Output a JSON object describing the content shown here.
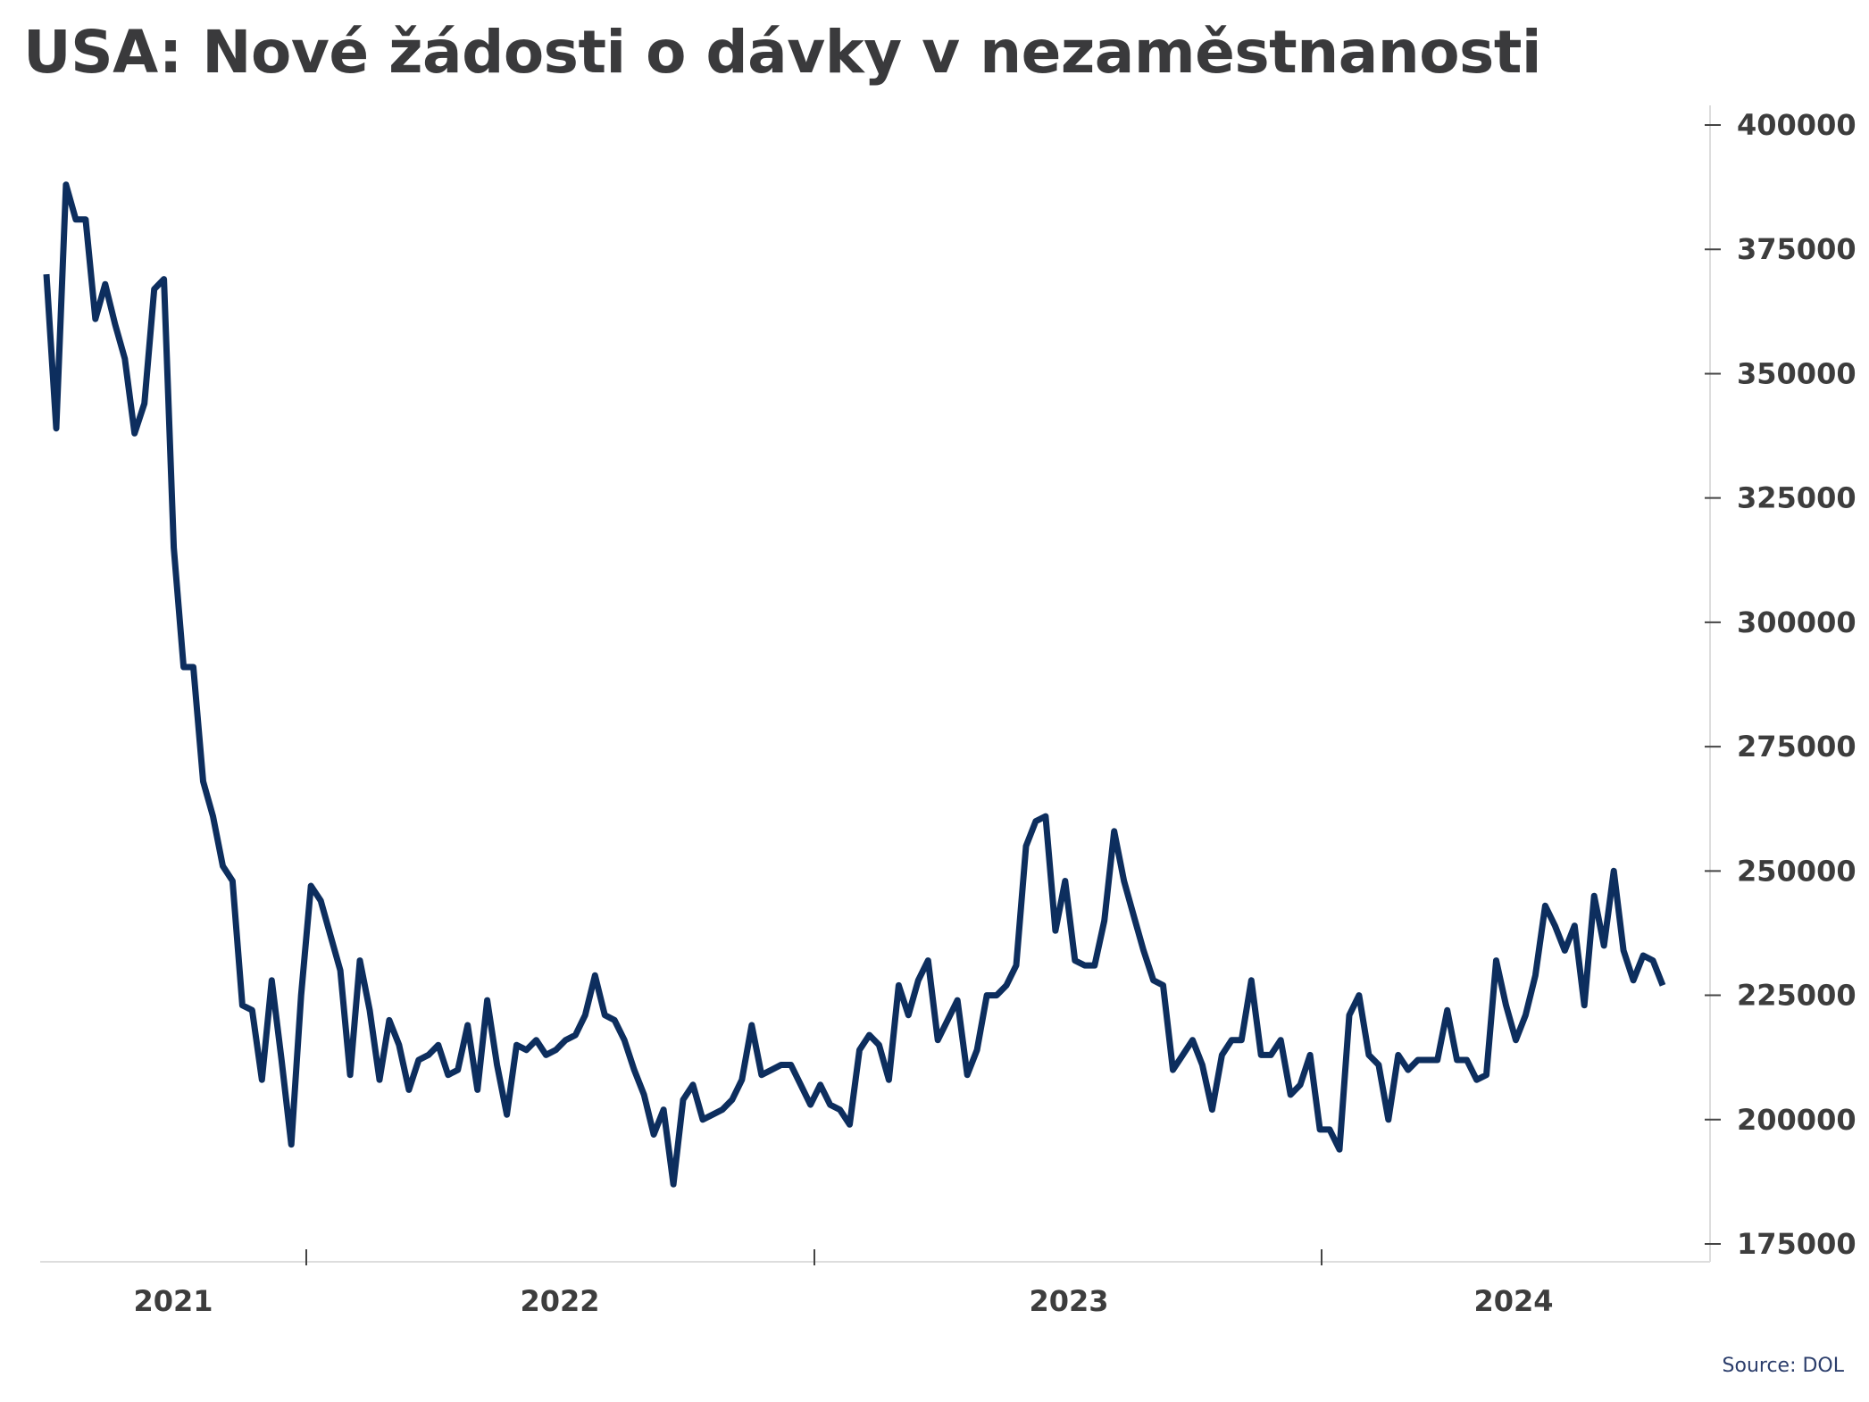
{
  "title": "USA: Nové žádosti o dávky v nezaměstnanosti",
  "source": "Source: DOL",
  "colors": {
    "line": "#0d2e5e",
    "text": "#3d3d3d",
    "axis": "#dddddd"
  },
  "chart_data": {
    "type": "line",
    "title": "USA: Nové žádosti o dávky v nezaměstnanosti",
    "xlabel": "",
    "ylabel": "",
    "x_tick_labels": [
      "2021",
      "2022",
      "2023",
      "2024"
    ],
    "y_ticks": [
      175000,
      200000,
      225000,
      250000,
      275000,
      300000,
      325000,
      350000,
      375000,
      400000
    ],
    "ylim": [
      172000,
      404000
    ],
    "y_axis_position": "right",
    "grid": false,
    "legend": "none",
    "series": [
      {
        "values": [
          370000,
          339000,
          388000,
          381000,
          381000,
          361000,
          368000,
          360000,
          353000,
          338000,
          344000,
          367000,
          369000,
          315000,
          291000,
          291000,
          268000,
          261000,
          251000,
          248000,
          223000,
          222000,
          208000,
          228000,
          212000,
          195000,
          225000,
          247000,
          244000,
          237000,
          230000,
          209000,
          232000,
          222000,
          208000,
          220000,
          215000,
          206000,
          212000,
          213000,
          215000,
          209000,
          210000,
          219000,
          206000,
          224000,
          211000,
          201000,
          215000,
          214000,
          216000,
          213000,
          214000,
          216000,
          217000,
          221000,
          229000,
          221000,
          220000,
          216000,
          210000,
          205000,
          197000,
          202000,
          187000,
          204000,
          207000,
          200000,
          201000,
          202000,
          204000,
          208000,
          219000,
          209000,
          210000,
          211000,
          211000,
          207000,
          203000,
          207000,
          203000,
          202000,
          199000,
          214000,
          217000,
          215000,
          208000,
          227000,
          221000,
          228000,
          232000,
          216000,
          220000,
          224000,
          209000,
          214000,
          225000,
          225000,
          227000,
          231000,
          255000,
          260000,
          261000,
          238000,
          248000,
          232000,
          231000,
          231000,
          240000,
          258000,
          248000,
          241000,
          234000,
          228000,
          227000,
          210000,
          213000,
          216000,
          211000,
          202000,
          213000,
          216000,
          216000,
          228000,
          213000,
          213000,
          216000,
          205000,
          207000,
          213000,
          198000,
          198000,
          194000,
          221000,
          225000,
          213000,
          211000,
          200000,
          213000,
          210000,
          212000,
          212000,
          212000,
          222000,
          212000,
          212000,
          208000,
          209000,
          232000,
          223000,
          216000,
          221000,
          229000,
          243000,
          239000,
          234000,
          239000,
          223000,
          245000,
          235000,
          250000,
          234000,
          228000,
          233000,
          232000,
          227000
        ]
      }
    ]
  }
}
